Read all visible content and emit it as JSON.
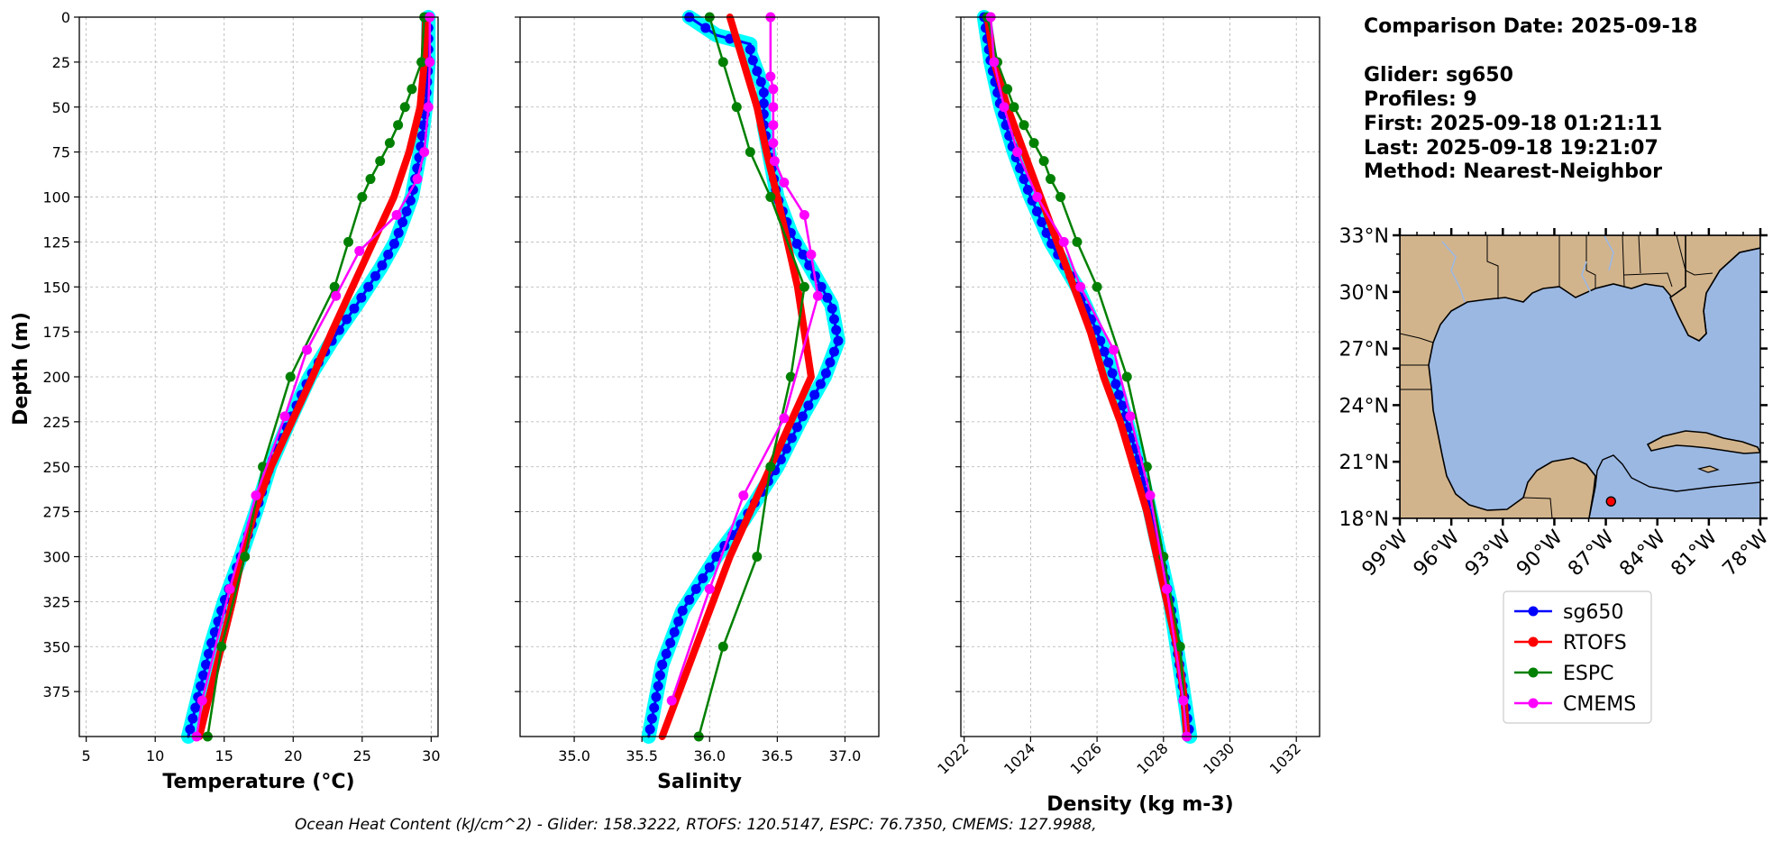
{
  "info": {
    "comparison_date": "Comparison Date: 2025-09-18",
    "glider": "Glider: sg650",
    "profiles": "Profiles: 9",
    "first": "First: 2025-09-18 01:21:11",
    "last": "Last: 2025-09-18 19:21:07",
    "method": "Method: Nearest-Neighbor"
  },
  "footer": "Ocean Heat Content (kJ/cm^2) - Glider: 158.3222,  RTOFS: 120.5147,  ESPC: 76.7350,  CMEMS: 127.9988,",
  "colors": {
    "sg650": "#0000ff",
    "RTOFS": "#ff0000",
    "ESPC": "#008000",
    "CMEMS": "#ff00ff",
    "envelope": "#00ffff",
    "land": "#d2b48c",
    "ocean": "#9bb8e3"
  },
  "chart_data": [
    {
      "type": "line",
      "xlabel": "Temperature (°C)",
      "ylabel": "Depth (m)",
      "xlim": [
        4.5,
        30.5
      ],
      "ylim": [
        400,
        0
      ],
      "xticks": [
        5,
        10,
        15,
        20,
        25,
        30
      ],
      "yticks": [
        0,
        25,
        50,
        75,
        100,
        125,
        150,
        175,
        200,
        225,
        250,
        275,
        300,
        325,
        350,
        375
      ],
      "grid": true,
      "series": [
        {
          "name": "sg650",
          "depth": [
            0,
            25,
            50,
            75,
            100,
            125,
            140,
            160,
            180,
            200,
            225,
            250,
            275,
            300,
            325,
            350,
            375,
            400
          ],
          "values": [
            29.8,
            29.8,
            29.6,
            29.2,
            28.6,
            27.4,
            26.3,
            24.6,
            22.8,
            21.2,
            19.7,
            18.3,
            17.3,
            16.2,
            15.0,
            14.0,
            13.2,
            12.4
          ]
        },
        {
          "name": "RTOFS",
          "depth": [
            0,
            25,
            50,
            75,
            100,
            125,
            150,
            175,
            200,
            225,
            250,
            275,
            300,
            325,
            350,
            375,
            400
          ],
          "values": [
            29.6,
            29.5,
            29.2,
            28.4,
            27.3,
            25.8,
            24.3,
            22.8,
            21.4,
            19.9,
            18.4,
            17.2,
            16.3,
            15.6,
            14.8,
            14.0,
            13.2
          ]
        },
        {
          "name": "ESPC",
          "depth": [
            0,
            25,
            40,
            50,
            60,
            70,
            80,
            90,
            100,
            125,
            150,
            200,
            250,
            300,
            350,
            400
          ],
          "values": [
            29.5,
            29.3,
            28.6,
            28.1,
            27.6,
            27.0,
            26.3,
            25.6,
            25.0,
            24.0,
            23.0,
            19.8,
            17.8,
            16.5,
            14.8,
            13.8
          ]
        },
        {
          "name": "CMEMS",
          "depth": [
            0,
            25,
            50,
            75,
            90,
            110,
            130,
            155,
            185,
            222,
            266,
            318,
            380,
            400
          ],
          "values": [
            29.9,
            29.9,
            29.8,
            29.5,
            29.0,
            27.5,
            24.8,
            23.1,
            21.0,
            19.4,
            17.3,
            15.4,
            13.4,
            13.0
          ]
        }
      ]
    },
    {
      "type": "line",
      "xlabel": "Salinity",
      "ylabel": "",
      "xlim": [
        34.6,
        37.25
      ],
      "ylim": [
        400,
        0
      ],
      "xticks": [
        35.0,
        35.5,
        36.0,
        36.5,
        37.0
      ],
      "grid": true,
      "series": [
        {
          "name": "sg650",
          "depth": [
            0,
            10,
            15,
            20,
            30,
            40,
            60,
            80,
            100,
            120,
            140,
            160,
            180,
            200,
            220,
            250,
            280,
            300,
            330,
            360,
            400
          ],
          "values": [
            35.85,
            36.05,
            36.3,
            36.3,
            36.35,
            36.4,
            36.4,
            36.45,
            36.5,
            36.6,
            36.75,
            36.9,
            36.95,
            36.85,
            36.7,
            36.5,
            36.25,
            36.05,
            35.8,
            35.65,
            35.55
          ]
        },
        {
          "name": "RTOFS",
          "depth": [
            0,
            25,
            50,
            75,
            100,
            150,
            200,
            250,
            300,
            350,
            400
          ],
          "values": [
            36.15,
            36.25,
            36.35,
            36.42,
            36.5,
            36.65,
            36.75,
            36.45,
            36.15,
            35.9,
            35.65
          ]
        },
        {
          "name": "ESPC",
          "depth": [
            0,
            25,
            50,
            75,
            100,
            150,
            200,
            250,
            300,
            350,
            400
          ],
          "values": [
            36.0,
            36.1,
            36.2,
            36.3,
            36.45,
            36.7,
            36.6,
            36.45,
            36.35,
            36.1,
            35.92
          ]
        },
        {
          "name": "CMEMS",
          "depth": [
            0,
            33,
            40,
            50,
            60,
            70,
            80,
            92,
            110,
            132,
            155,
            223,
            266,
            318,
            380
          ],
          "values": [
            36.45,
            36.45,
            36.47,
            36.47,
            36.47,
            36.47,
            36.48,
            36.55,
            36.7,
            36.75,
            36.8,
            36.55,
            36.25,
            36.0,
            35.72
          ]
        }
      ]
    },
    {
      "type": "line",
      "xlabel": "Density (kg m-3)",
      "ylabel": "",
      "xlim": [
        1021.9,
        1032.7
      ],
      "ylim": [
        400,
        0
      ],
      "xticks": [
        1022,
        1024,
        1026,
        1028,
        1030,
        1032
      ],
      "grid": true,
      "series": [
        {
          "name": "sg650",
          "depth": [
            0,
            25,
            50,
            75,
            100,
            125,
            150,
            175,
            200,
            225,
            250,
            275,
            300,
            325,
            350,
            375,
            400
          ],
          "values": [
            1022.6,
            1022.8,
            1023.1,
            1023.5,
            1024.0,
            1024.6,
            1025.4,
            1026.0,
            1026.5,
            1026.9,
            1027.3,
            1027.6,
            1027.9,
            1028.2,
            1028.4,
            1028.6,
            1028.8
          ]
        },
        {
          "name": "RTOFS",
          "depth": [
            0,
            25,
            50,
            75,
            100,
            125,
            150,
            175,
            200,
            225,
            250,
            275,
            300,
            325,
            350,
            375,
            400
          ],
          "values": [
            1022.7,
            1022.9,
            1023.3,
            1023.8,
            1024.3,
            1024.8,
            1025.3,
            1025.8,
            1026.2,
            1026.7,
            1027.1,
            1027.5,
            1027.8,
            1028.1,
            1028.4,
            1028.6,
            1028.7
          ]
        },
        {
          "name": "ESPC",
          "depth": [
            0,
            25,
            40,
            50,
            60,
            70,
            80,
            90,
            100,
            125,
            150,
            200,
            250,
            300,
            350,
            400
          ],
          "values": [
            1022.7,
            1023.0,
            1023.3,
            1023.5,
            1023.8,
            1024.1,
            1024.4,
            1024.6,
            1024.9,
            1025.4,
            1026.0,
            1026.9,
            1027.5,
            1028.0,
            1028.5,
            1028.7
          ]
        },
        {
          "name": "CMEMS",
          "depth": [
            0,
            25,
            50,
            75,
            100,
            125,
            150,
            185,
            222,
            266,
            318,
            380,
            400
          ],
          "values": [
            1022.8,
            1022.9,
            1023.2,
            1023.6,
            1024.2,
            1025.0,
            1025.5,
            1026.5,
            1027.0,
            1027.6,
            1028.1,
            1028.6,
            1028.7
          ]
        }
      ]
    }
  ],
  "map": {
    "lon_labels": [
      "99°W",
      "96°W",
      "93°W",
      "90°W",
      "87°W",
      "84°W",
      "81°W",
      "78°W"
    ],
    "lat_labels": [
      "33°N",
      "30°N",
      "27°N",
      "24°N",
      "21°N",
      "18°N"
    ],
    "lon_range": [
      -99,
      -78
    ],
    "lat_range": [
      18,
      33
    ],
    "marker": {
      "lon": -86.7,
      "lat": 18.9
    }
  },
  "legend": [
    "sg650",
    "RTOFS",
    "ESPC",
    "CMEMS"
  ]
}
